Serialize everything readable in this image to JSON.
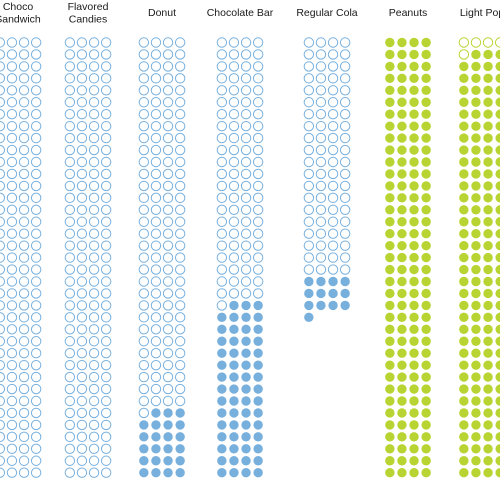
{
  "chart_data": {
    "type": "dot-grid",
    "categories": [
      {
        "name": "Choco Sandwich",
        "label_lines": [
          "Choco",
          "Sandwich"
        ],
        "total": 148,
        "filled": 0,
        "kind": "blue"
      },
      {
        "name": "Flavored Candies",
        "label_lines": [
          "Flavored",
          "Candies"
        ],
        "total": 148,
        "filled": 0,
        "kind": "blue"
      },
      {
        "name": "Donut",
        "label_lines": [
          "Donut"
        ],
        "total": 148,
        "filled": 23,
        "kind": "blue"
      },
      {
        "name": "Chocolate Bar",
        "label_lines": [
          "Chocolate Bar"
        ],
        "total": 148,
        "filled": 59,
        "kind": "blue"
      },
      {
        "name": "Regular Cola",
        "label_lines": [
          "Regular Cola"
        ],
        "total": 93,
        "filled": 13,
        "kind": "blue"
      },
      {
        "name": "Peanuts",
        "label_lines": [
          "Peanuts"
        ],
        "total": 148,
        "filled": 148,
        "kind": "green"
      },
      {
        "name": "Light Popcorn",
        "label_lines": [
          "Light Pop"
        ],
        "total": 148,
        "filled": 143,
        "kind": "green"
      }
    ],
    "colors": {
      "blue": "#78b0dd",
      "green": "#b8d432",
      "empty_fill": "#ffffff"
    }
  }
}
